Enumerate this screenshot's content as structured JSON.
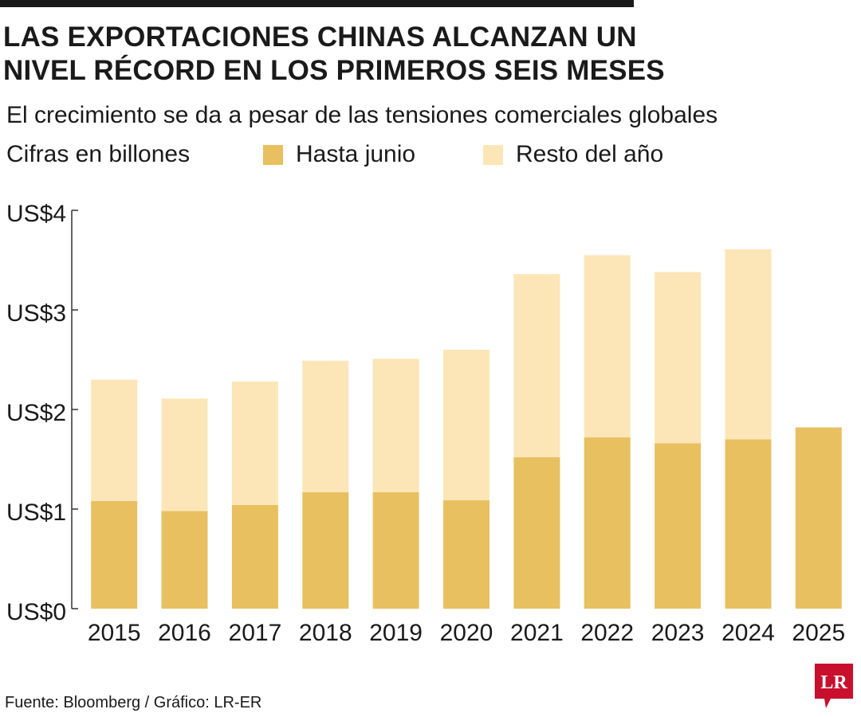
{
  "header": {
    "title_line1": "LAS EXPORTACIONES CHINAS ALCANZAN UN",
    "title_line2": "NIVEL RÉCORD EN LOS PRIMEROS SEIS MESES",
    "subtitle": "El crecimiento se da a pesar de las tensiones comerciales globales",
    "units": "Cifras en billones"
  },
  "legend": {
    "first_half_label": "Hasta junio",
    "rest_label": "Resto del año"
  },
  "colors": {
    "first_half": "#e8c05f",
    "rest": "#fce6b7",
    "axis": "#333333",
    "text": "#1a1a1a",
    "logo": "#c8102e"
  },
  "footer": {
    "source": "Fuente: Bloomberg / Gráfico: LR-ER",
    "logo_text": "LR"
  },
  "chart_data": {
    "type": "bar",
    "stacked": true,
    "title": "LAS EXPORTACIONES CHINAS ALCANZAN UN NIVEL RÉCORD EN LOS PRIMEROS SEIS MESES",
    "subtitle": "El crecimiento se da a pesar de las tensiones comerciales globales",
    "ylabel": "Cifras en billones",
    "xlabel": "",
    "categories": [
      "2015",
      "2016",
      "2017",
      "2018",
      "2019",
      "2020",
      "2021",
      "2022",
      "2023",
      "2024",
      "2025"
    ],
    "series": [
      {
        "name": "Hasta junio",
        "values": [
          1.08,
          0.98,
          1.04,
          1.17,
          1.17,
          1.09,
          1.52,
          1.72,
          1.66,
          1.7,
          1.82
        ]
      },
      {
        "name": "Resto del año",
        "values": [
          1.22,
          1.13,
          1.24,
          1.32,
          1.34,
          1.51,
          1.84,
          1.83,
          1.72,
          1.91,
          0
        ]
      }
    ],
    "ylim": [
      0,
      4
    ],
    "yticks": [
      0,
      1,
      2,
      3,
      4
    ],
    "ytick_labels": [
      "US$0",
      "US$1",
      "US$2",
      "US$3",
      "US$4"
    ],
    "grid": false,
    "legend_position": "top"
  }
}
